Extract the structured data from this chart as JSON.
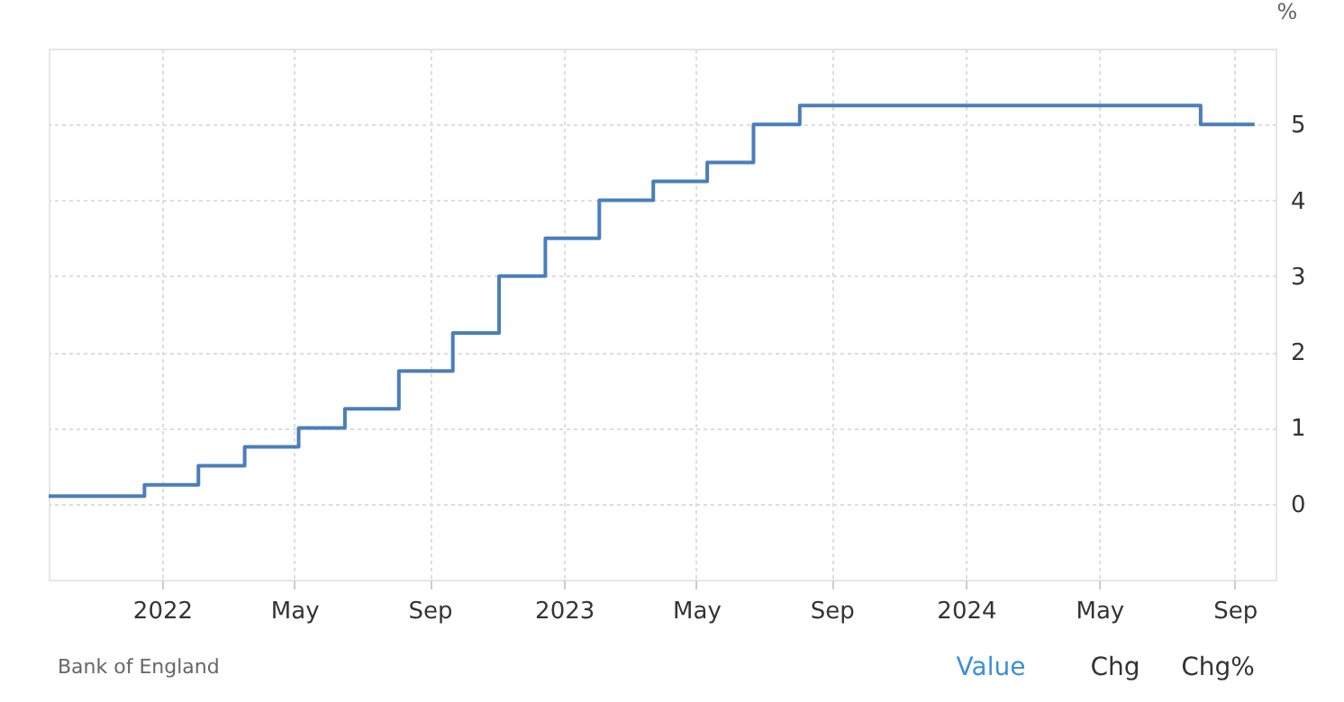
{
  "chart_data": {
    "type": "step",
    "ylabel": "%",
    "x": [
      "2021-09-20",
      "2021-12-16",
      "2022-02-03",
      "2022-03-17",
      "2022-05-05",
      "2022-06-16",
      "2022-08-04",
      "2022-09-22",
      "2022-11-03",
      "2022-12-15",
      "2023-02-02",
      "2023-03-23",
      "2023-05-11",
      "2023-06-22",
      "2023-08-03",
      "2024-08-01",
      "2024-09-19"
    ],
    "series": [
      {
        "color": "#4a7ebb",
        "values": [
          0.1,
          0.25,
          0.5,
          0.75,
          1.0,
          1.25,
          1.75,
          2.25,
          3.0,
          3.5,
          4.0,
          4.25,
          4.5,
          5.0,
          5.25,
          5.0,
          5.0
        ]
      }
    ],
    "xlim": [
      "2021-09-20",
      "2024-10-08"
    ],
    "xticks": [
      {
        "value": "2022-01-01",
        "label": "2022"
      },
      {
        "value": "2022-05-01",
        "label": "May"
      },
      {
        "value": "2022-09-01",
        "label": "Sep"
      },
      {
        "value": "2023-01-01",
        "label": "2023"
      },
      {
        "value": "2023-05-01",
        "label": "May"
      },
      {
        "value": "2023-09-01",
        "label": "Sep"
      },
      {
        "value": "2024-01-01",
        "label": "2024"
      },
      {
        "value": "2024-05-01",
        "label": "May"
      },
      {
        "value": "2024-09-01",
        "label": "Sep"
      }
    ],
    "ylim": [
      -1,
      6
    ],
    "yticks": [
      0,
      1,
      2,
      3,
      4,
      5
    ],
    "grid": true,
    "legend": false,
    "annotations": [
      "Bank of England",
      "Value",
      "Chg",
      "Chg%"
    ]
  }
}
